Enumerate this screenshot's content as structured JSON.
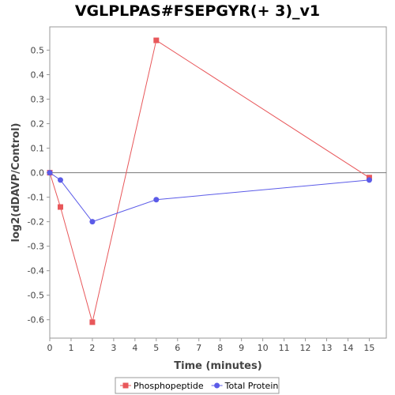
{
  "chart_data": {
    "type": "line",
    "title": "VGLPLPAS#FSEPGYR(+ 3)_v1",
    "xlabel": "Time (minutes)",
    "ylabel": "log2(dDAVP/Control)",
    "xlim": [
      0,
      15.8
    ],
    "ylim": [
      -0.675,
      0.595
    ],
    "x_ticks": [
      0,
      1,
      2,
      3,
      4,
      5,
      6,
      7,
      8,
      9,
      10,
      11,
      12,
      13,
      14,
      15
    ],
    "y_ticks": [
      0.5,
      0.4,
      0.3,
      0.2,
      0.1,
      0.0,
      -0.1,
      -0.2,
      -0.3,
      -0.4,
      -0.5,
      -0.6
    ],
    "y_tick_labels": [
      "0.5",
      "0.4",
      "0.3",
      "0.2",
      "0.1",
      "0.0",
      "-0.1",
      "-0.2",
      "-0.3",
      "-0.4",
      "-0.5",
      "-0.6"
    ],
    "grid": false,
    "zero_line": true,
    "legend_position": "bottom-center",
    "series": [
      {
        "name": "Phosphopeptide",
        "marker": "square",
        "color": "#e8575a",
        "x": [
          0,
          0.5,
          2,
          5,
          15
        ],
        "y": [
          0.0,
          -0.14,
          -0.61,
          0.54,
          -0.02
        ]
      },
      {
        "name": "Total Protein",
        "marker": "circle",
        "color": "#5b5be8",
        "x": [
          0,
          0.5,
          2,
          5,
          15
        ],
        "y": [
          0.0,
          -0.03,
          -0.2,
          -0.11,
          -0.03
        ]
      }
    ]
  }
}
